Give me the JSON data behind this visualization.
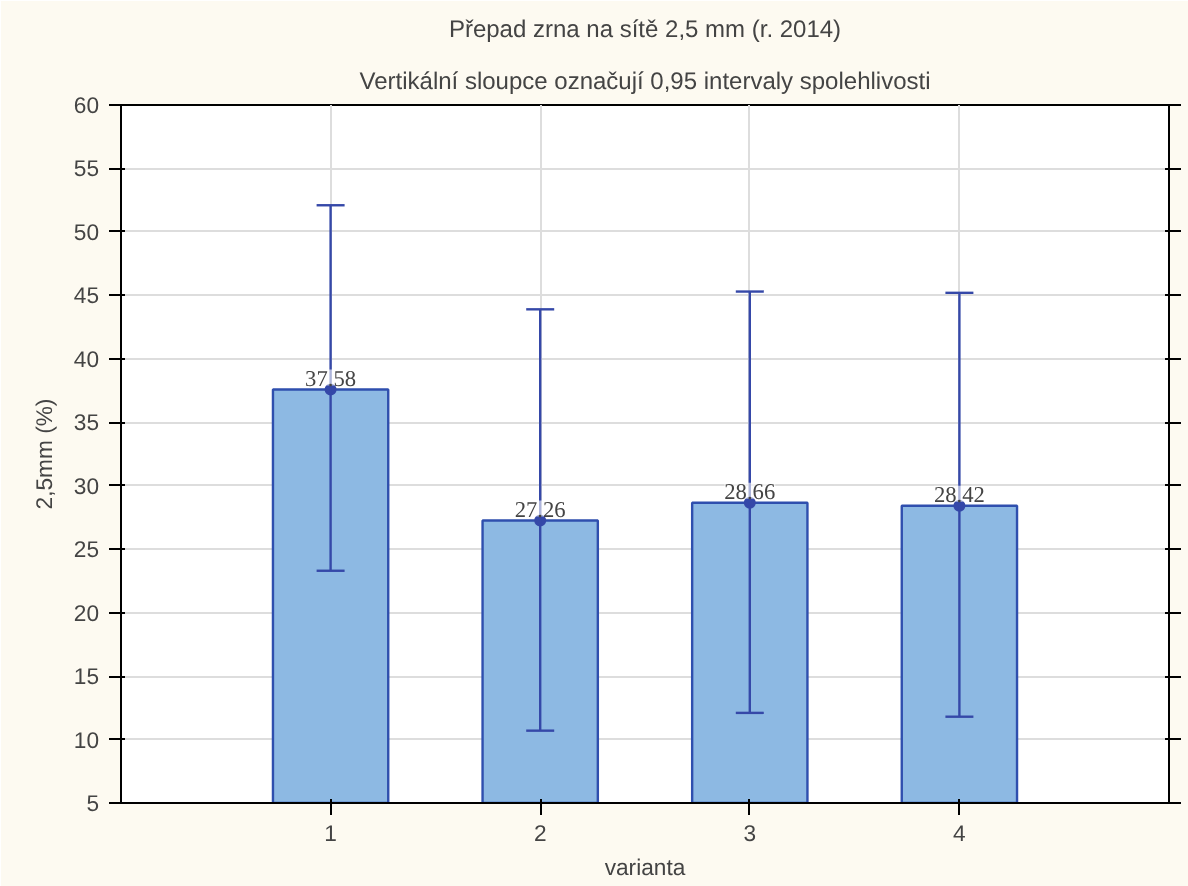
{
  "chart_data": {
    "type": "bar",
    "title": "Přepad zrna na sítě 2,5 mm (r. 2014)",
    "subtitle": "Vertikální sloupce označují 0,95 intervaly spolehlivosti",
    "xlabel": "varianta",
    "ylabel": "2,5mm (%)",
    "categories": [
      "1",
      "2",
      "3",
      "4"
    ],
    "series": [
      {
        "color": "#8db9e3",
        "values": [
          37.58,
          27.26,
          28.66,
          28.42
        ],
        "value_labels": [
          "37.58",
          "27.26",
          "28.66",
          "28.42"
        ],
        "errors": [
          [
            23.3,
            52.1
          ],
          [
            10.7,
            43.9
          ],
          [
            12.1,
            45.3
          ],
          [
            11.8,
            45.2
          ]
        ]
      },
      {
        "type": "scatter",
        "color": "#3548a8",
        "x": [
          "1",
          "2",
          "3",
          "4"
        ],
        "values": [
          37.58,
          27.26,
          28.66,
          28.42
        ]
      }
    ],
    "ylim": [
      5,
      60
    ],
    "yticks": [
      5,
      10,
      15,
      20,
      25,
      30,
      35,
      40,
      45,
      50,
      55,
      60
    ],
    "grid": true,
    "marker": "circle"
  }
}
